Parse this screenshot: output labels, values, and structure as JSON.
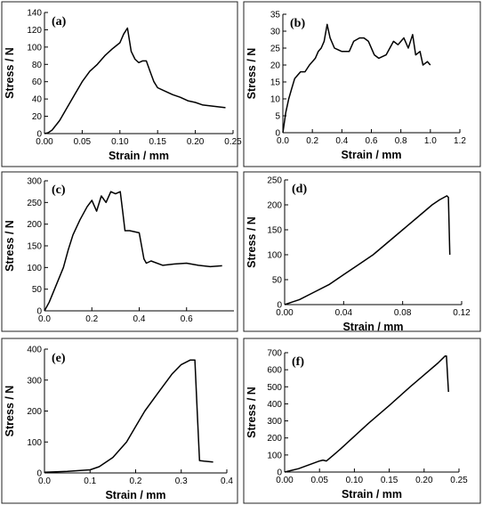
{
  "chart_data": [
    {
      "type": "line",
      "panel_label": "(a)",
      "xlabel": "Strain / mm",
      "ylabel": "Stress / N",
      "xlim": [
        0,
        0.25
      ],
      "ylim": [
        0,
        140
      ],
      "xticks": [
        "0.00",
        "0.05",
        "0.10",
        "0.15",
        "0.20",
        "0.25"
      ],
      "yticks": [
        "0",
        "20",
        "40",
        "60",
        "80",
        "100",
        "120",
        "140"
      ],
      "grid": false,
      "series": [
        {
          "x": [
            0,
            0.005,
            0.01,
            0.02,
            0.03,
            0.04,
            0.05,
            0.06,
            0.07,
            0.08,
            0.09,
            0.1,
            0.105,
            0.11,
            0.115,
            0.12,
            0.125,
            0.13,
            0.135,
            0.14,
            0.145,
            0.15,
            0.16,
            0.17,
            0.18,
            0.19,
            0.2,
            0.21,
            0.22,
            0.23,
            0.24
          ],
          "y": [
            0,
            1,
            4,
            15,
            30,
            45,
            60,
            72,
            80,
            90,
            98,
            105,
            115,
            122,
            95,
            86,
            82,
            84,
            84,
            72,
            60,
            53,
            49,
            45,
            42,
            38,
            36,
            33,
            32,
            31,
            30
          ]
        }
      ]
    },
    {
      "type": "line",
      "panel_label": "(b)",
      "xlabel": "Strain / mm",
      "ylabel": "Stress / N",
      "xlim": [
        0,
        1.2
      ],
      "ylim": [
        0,
        35
      ],
      "xticks": [
        "0.0",
        "0.2",
        "0.4",
        "0.6",
        "0.8",
        "1.0",
        "1.2"
      ],
      "yticks": [
        "0",
        "5",
        "10",
        "15",
        "20",
        "25",
        "30",
        "35"
      ],
      "grid": false,
      "series": [
        {
          "x": [
            0,
            0.02,
            0.04,
            0.06,
            0.08,
            0.1,
            0.12,
            0.15,
            0.18,
            0.2,
            0.22,
            0.24,
            0.26,
            0.28,
            0.3,
            0.32,
            0.35,
            0.4,
            0.45,
            0.48,
            0.52,
            0.55,
            0.58,
            0.62,
            0.65,
            0.7,
            0.75,
            0.78,
            0.82,
            0.85,
            0.88,
            0.9,
            0.93,
            0.95,
            0.98,
            1.0
          ],
          "y": [
            0,
            6,
            10,
            13,
            16,
            17,
            18,
            18,
            20,
            21,
            22,
            24,
            25,
            27,
            32,
            28,
            25,
            24,
            24,
            27,
            28,
            28,
            27,
            23,
            22,
            23,
            27,
            26,
            28,
            25,
            29,
            23,
            24,
            20,
            21,
            20
          ]
        }
      ]
    },
    {
      "type": "line",
      "panel_label": "(c)",
      "xlabel": "",
      "ylabel": "Stress / N",
      "xlim": [
        0,
        0.8
      ],
      "ylim": [
        0,
        300
      ],
      "xticks": [
        "0.0",
        "0.2",
        "0.4",
        "0.6"
      ],
      "yticks": [
        "0",
        "50",
        "100",
        "150",
        "200",
        "250",
        "300"
      ],
      "grid": false,
      "series": [
        {
          "x": [
            0,
            0.02,
            0.05,
            0.08,
            0.1,
            0.12,
            0.15,
            0.18,
            0.2,
            0.22,
            0.24,
            0.26,
            0.28,
            0.3,
            0.32,
            0.33,
            0.34,
            0.36,
            0.4,
            0.42,
            0.43,
            0.45,
            0.5,
            0.55,
            0.6,
            0.65,
            0.7,
            0.75
          ],
          "y": [
            0,
            20,
            60,
            100,
            140,
            175,
            210,
            240,
            255,
            230,
            265,
            250,
            275,
            270,
            275,
            230,
            185,
            185,
            180,
            120,
            110,
            115,
            105,
            108,
            110,
            105,
            102,
            104
          ]
        }
      ]
    },
    {
      "type": "line",
      "panel_label": "(d)",
      "xlabel": "Strain / mm",
      "ylabel": "Stress / N",
      "xlim": [
        0,
        0.12
      ],
      "ylim": [
        0,
        250
      ],
      "xticks": [
        "0.00",
        "0.04",
        "0.08",
        "0.12"
      ],
      "yticks": [
        "0",
        "50",
        "100",
        "150",
        "200",
        "250"
      ],
      "grid": false,
      "series": [
        {
          "x": [
            0,
            0.005,
            0.01,
            0.02,
            0.03,
            0.04,
            0.05,
            0.06,
            0.07,
            0.08,
            0.09,
            0.1,
            0.105,
            0.11,
            0.111,
            0.112
          ],
          "y": [
            0,
            5,
            10,
            25,
            40,
            60,
            80,
            100,
            125,
            150,
            175,
            200,
            210,
            218,
            215,
            100
          ]
        }
      ]
    },
    {
      "type": "line",
      "panel_label": "(e)",
      "xlabel": "Strain / mm",
      "ylabel": "Stress / N",
      "xlim": [
        0,
        0.4
      ],
      "ylim": [
        0,
        400
      ],
      "xticks": [
        "0.0",
        "0.1",
        "0.2",
        "0.3",
        "0.4"
      ],
      "yticks": [
        "0",
        "100",
        "200",
        "300",
        "400"
      ],
      "grid": false,
      "series": [
        {
          "x": [
            0,
            0.05,
            0.1,
            0.12,
            0.15,
            0.18,
            0.2,
            0.22,
            0.25,
            0.28,
            0.3,
            0.32,
            0.33,
            0.335,
            0.34,
            0.35,
            0.37
          ],
          "y": [
            2,
            5,
            10,
            20,
            50,
            100,
            150,
            200,
            260,
            320,
            350,
            365,
            365,
            200,
            40,
            38,
            35
          ]
        }
      ]
    },
    {
      "type": "line",
      "panel_label": "(f)",
      "xlabel": "Strain / mm",
      "ylabel": "Stress / N",
      "xlim": [
        0,
        0.25
      ],
      "ylim": [
        0,
        700
      ],
      "xticks": [
        "0.00",
        "0.05",
        "0.10",
        "0.15",
        "0.20",
        "0.25"
      ],
      "yticks": [
        "0",
        "100",
        "200",
        "300",
        "400",
        "500",
        "600",
        "700"
      ],
      "grid": false,
      "series": [
        {
          "x": [
            0,
            0.01,
            0.02,
            0.03,
            0.04,
            0.05,
            0.055,
            0.06,
            0.07,
            0.08,
            0.1,
            0.12,
            0.15,
            0.18,
            0.2,
            0.22,
            0.23,
            0.232,
            0.235
          ],
          "y": [
            0,
            10,
            20,
            35,
            50,
            65,
            70,
            65,
            100,
            135,
            210,
            285,
            390,
            500,
            570,
            640,
            680,
            680,
            470
          ]
        }
      ]
    }
  ]
}
